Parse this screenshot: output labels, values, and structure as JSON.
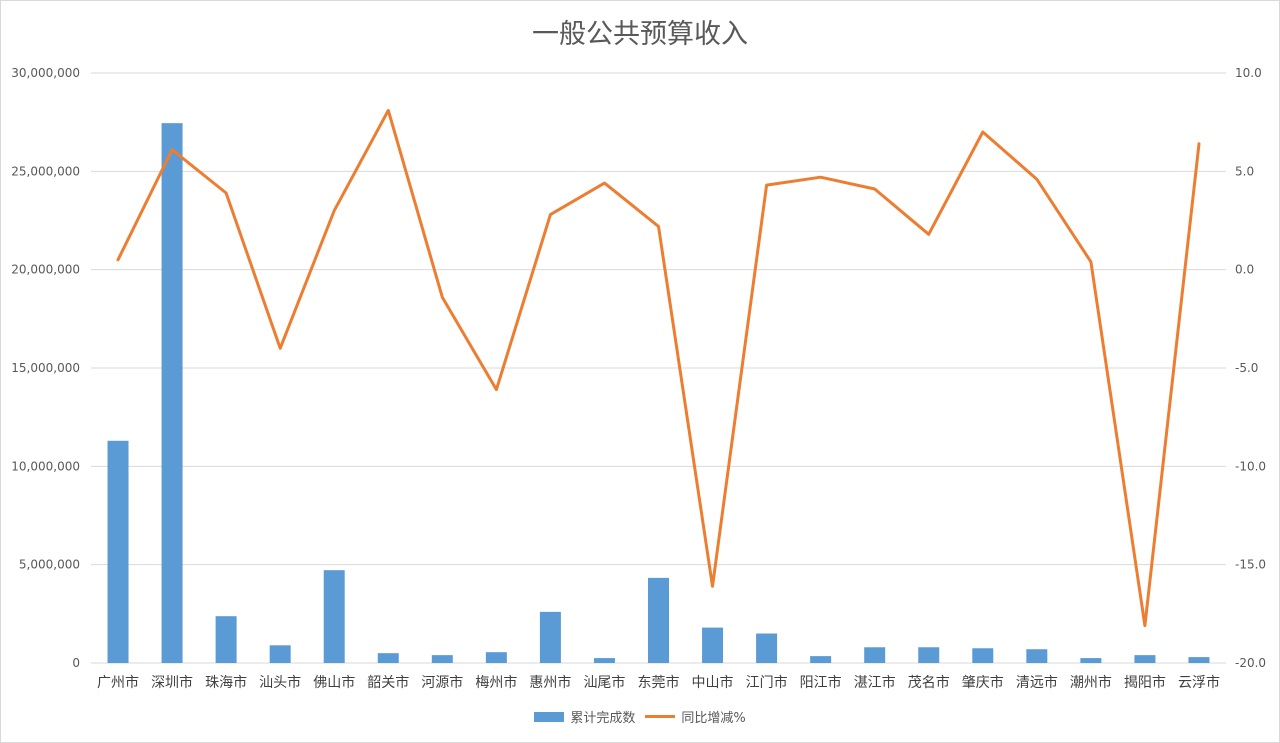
{
  "chart_data": {
    "type": "bar",
    "title": "一般公共预算收入",
    "categories": [
      "广州市",
      "深圳市",
      "珠海市",
      "汕头市",
      "佛山市",
      "韶关市",
      "河源市",
      "梅州市",
      "惠州市",
      "汕尾市",
      "东莞市",
      "中山市",
      "江门市",
      "阳江市",
      "湛江市",
      "茂名市",
      "肇庆市",
      "清远市",
      "潮州市",
      "揭阳市",
      "云浮市"
    ],
    "series": [
      {
        "name": "累计完成数",
        "type": "bar",
        "axis": "left",
        "color": "#5b9bd5",
        "values": [
          11300000,
          27450000,
          2380000,
          900000,
          4720000,
          500000,
          400000,
          550000,
          2600000,
          250000,
          4330000,
          1800000,
          1500000,
          350000,
          800000,
          800000,
          750000,
          700000,
          250000,
          400000,
          300000
        ]
      },
      {
        "name": "同比增减%",
        "type": "line",
        "axis": "right",
        "color": "#ed7d31",
        "values": [
          0.5,
          6.1,
          3.9,
          -4.0,
          3.0,
          8.1,
          -1.4,
          -6.1,
          2.8,
          4.4,
          2.2,
          -16.1,
          4.3,
          4.7,
          4.1,
          1.8,
          7.0,
          4.6,
          0.4,
          -18.1,
          6.4
        ]
      }
    ],
    "y_left": {
      "min": 0,
      "max": 30000000,
      "step": 5000000,
      "ticks": [
        "0",
        "5,000,000",
        "10,000,000",
        "15,000,000",
        "20,000,000",
        "25,000,000",
        "30,000,000"
      ]
    },
    "y_right": {
      "min": -20,
      "max": 10,
      "step": 5,
      "ticks": [
        "-20.0",
        "-15.0",
        "-10.0",
        "-5.0",
        "0.0",
        "5.0",
        "10.0"
      ]
    },
    "grid": true,
    "legend": "bottom"
  }
}
